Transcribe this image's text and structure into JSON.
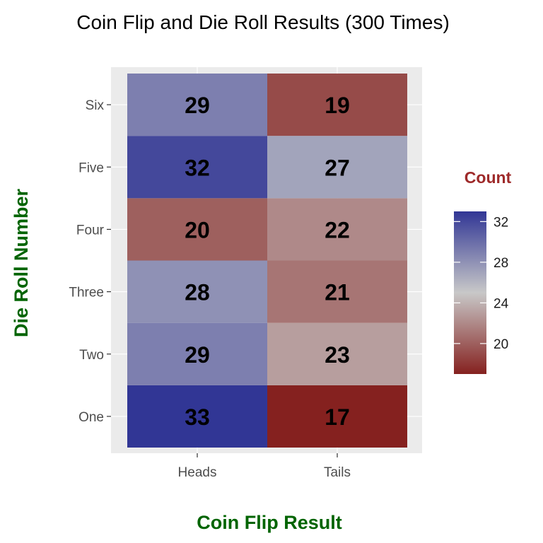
{
  "chart_data": {
    "type": "heatmap",
    "title": "Coin Flip and Die Roll Results (300 Times)",
    "xlabel": "Coin Flip Result",
    "ylabel": "Die Roll Number",
    "x_categories": [
      "Heads",
      "Tails"
    ],
    "y_categories": [
      "One",
      "Two",
      "Three",
      "Four",
      "Five",
      "Six"
    ],
    "values": [
      {
        "x": "Heads",
        "y": "One",
        "value": 33
      },
      {
        "x": "Tails",
        "y": "One",
        "value": 17
      },
      {
        "x": "Heads",
        "y": "Two",
        "value": 29
      },
      {
        "x": "Tails",
        "y": "Two",
        "value": 23
      },
      {
        "x": "Heads",
        "y": "Three",
        "value": 28
      },
      {
        "x": "Tails",
        "y": "Three",
        "value": 21
      },
      {
        "x": "Heads",
        "y": "Four",
        "value": 20
      },
      {
        "x": "Tails",
        "y": "Four",
        "value": 22
      },
      {
        "x": "Heads",
        "y": "Five",
        "value": 32
      },
      {
        "x": "Tails",
        "y": "Five",
        "value": 27
      },
      {
        "x": "Heads",
        "y": "Six",
        "value": 29
      },
      {
        "x": "Tails",
        "y": "Six",
        "value": 19
      }
    ],
    "legend": {
      "title": "Count",
      "position": "right",
      "breaks": [
        20,
        24,
        28,
        32
      ],
      "range": [
        17,
        33
      ]
    },
    "colors": {
      "low": "#85211f",
      "mid": "#c8c8c8",
      "high": "#313695",
      "axis_title": "#006400",
      "legend_title": "#9e2a2a",
      "panel_background": "#ebebeb"
    },
    "grid": true
  }
}
